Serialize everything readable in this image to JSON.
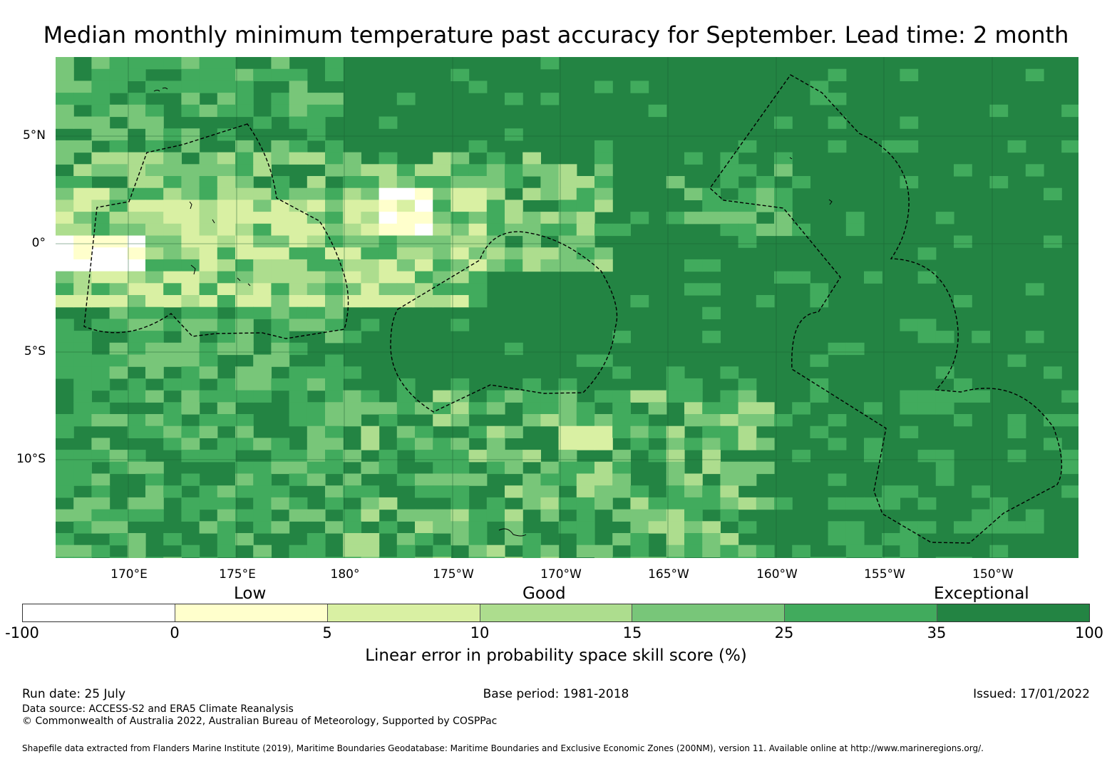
{
  "title": "Median monthly minimum temperature past accuracy for September. Lead time: 2 month",
  "map": {
    "lon_labels": [
      "170°E",
      "175°E",
      "180°",
      "175°W",
      "170°W",
      "165°W",
      "160°W",
      "155°W",
      "150°W"
    ],
    "lat_labels": [
      "5°N",
      "0°",
      "5°S",
      "10°S"
    ],
    "background_category_color": "#238443"
  },
  "legend": {
    "categories": [
      "Low",
      "Good",
      "Exceptional"
    ],
    "bins": [
      {
        "from": -100,
        "to": 0,
        "color": "#ffffff"
      },
      {
        "from": 0,
        "to": 5,
        "color": "#ffffcc"
      },
      {
        "from": 5,
        "to": 10,
        "color": "#d9f0a3"
      },
      {
        "from": 10,
        "to": 15,
        "color": "#addd8e"
      },
      {
        "from": 15,
        "to": 25,
        "color": "#78c679"
      },
      {
        "from": 25,
        "to": 35,
        "color": "#41ab5d"
      },
      {
        "from": 35,
        "to": 100,
        "color": "#238443"
      }
    ],
    "tick_labels": [
      "-100",
      "0",
      "5",
      "10",
      "15",
      "25",
      "35",
      "100"
    ],
    "label": "Linear error in probability space skill score (%)"
  },
  "footer": {
    "run_date": "Run date: 25 July",
    "base_period": "Base period: 1981-2018",
    "issued": "Issued: 17/01/2022",
    "data_source": "Data source: ACCESS-S2 and ERA5 Climate Reanalysis",
    "copyright": "© Commonwealth of Australia 2022, Australian Bureau of Meteorology, Supported by COSPPac",
    "shapefile_credit": "Shapefile data extracted from Flanders Marine Institute (2019), Maritime Boundaries Geodatabase: Maritime Boundaries and Exclusive Economic Zones (200NM), version 11. Available online at http://www.marineregions.org/."
  }
}
